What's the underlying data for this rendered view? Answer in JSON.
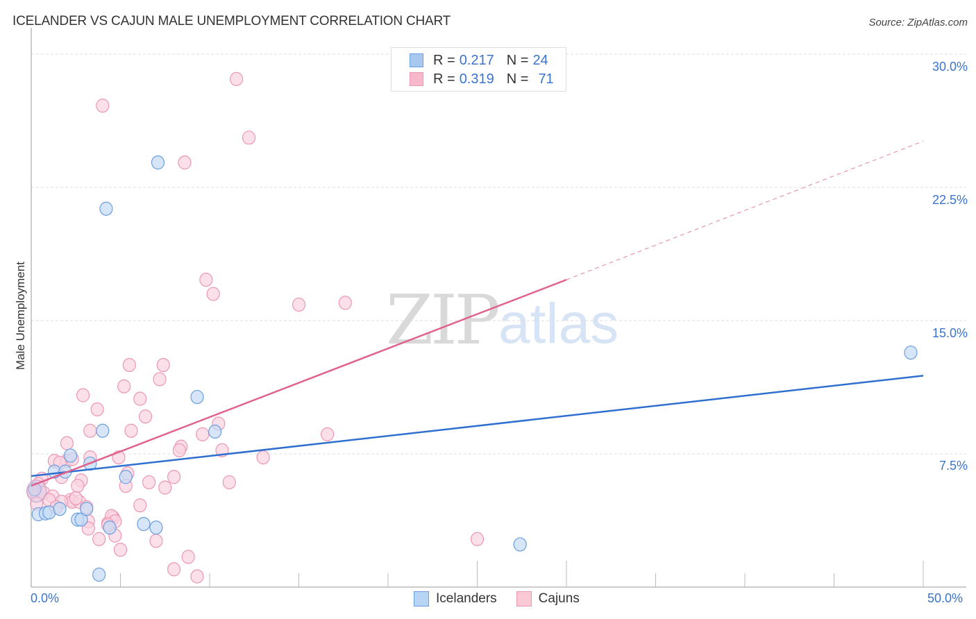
{
  "header": {
    "title": "ICELANDER VS CAJUN MALE UNEMPLOYMENT CORRELATION CHART",
    "source": "Source: ZipAtlas.com"
  },
  "watermark": {
    "zip": "ZIP",
    "atlas": "atlas"
  },
  "axes": {
    "ylabel": "Male Unemployment",
    "yticks": [
      "30.0%",
      "22.5%",
      "15.0%",
      "7.5%"
    ],
    "xticks": [
      "0.0%",
      "50.0%"
    ]
  },
  "legend": {
    "rows": [
      {
        "r_label": "R =",
        "r_value": "0.217",
        "n_label": "N =",
        "n_value": "24",
        "color": "#a8c8f0"
      },
      {
        "r_label": "R =",
        "r_value": "0.319",
        "n_label": "N =",
        "n_value": "71",
        "color": "#f7b8cb"
      }
    ]
  },
  "bottom_legend": {
    "items": [
      {
        "label": "Icelanders",
        "color": "#b8d4f4"
      },
      {
        "label": "Cajuns",
        "color": "#fbc8d6"
      }
    ]
  },
  "colors": {
    "icelanders_fill": "#c5dbf5",
    "icelanders_stroke": "#6a9ee0",
    "icelanders_line": "#2f6fd0",
    "cajuns_fill": "#fbd3df",
    "cajuns_stroke": "#ec97b1",
    "cajuns_line": "#e0628c",
    "tick_text": "#3b74cc",
    "grid": "#dddddd"
  },
  "chart_data": {
    "type": "scatter",
    "title": "ICELANDER VS CAJUN MALE UNEMPLOYMENT CORRELATION CHART",
    "xlabel": "",
    "ylabel": "Male Unemployment",
    "xlim": [
      0,
      50
    ],
    "ylim": [
      0,
      30
    ],
    "x_tick_labels": [
      "0.0%",
      "50.0%"
    ],
    "y_tick_labels": [
      "7.5%",
      "15.0%",
      "22.5%",
      "30.0%"
    ],
    "grid": "horizontal dashed",
    "legend_position": "top-center",
    "series": [
      {
        "name": "Icelanders",
        "R": 0.217,
        "N": 24,
        "points": [
          [
            7.1,
            23.9
          ],
          [
            4.2,
            21.3
          ],
          [
            49.3,
            13.2
          ],
          [
            9.3,
            10.7
          ],
          [
            4.0,
            8.8
          ],
          [
            10.3,
            8.75
          ],
          [
            2.2,
            7.4
          ],
          [
            3.3,
            6.95
          ],
          [
            1.3,
            6.5
          ],
          [
            1.9,
            6.5
          ],
          [
            5.3,
            6.2
          ],
          [
            0.2,
            5.5
          ],
          [
            0.4,
            4.1
          ],
          [
            0.8,
            4.15
          ],
          [
            1.0,
            4.2
          ],
          [
            1.6,
            4.4
          ],
          [
            2.6,
            3.8
          ],
          [
            2.8,
            3.8
          ],
          [
            3.1,
            4.4
          ],
          [
            4.4,
            3.35
          ],
          [
            6.3,
            3.55
          ],
          [
            7.0,
            3.35
          ],
          [
            27.4,
            2.4
          ],
          [
            3.8,
            0.7
          ]
        ],
        "trend": {
          "x0": 0,
          "y0": 6.25,
          "x1": 50,
          "y1": 11.9
        }
      },
      {
        "name": "Cajuns",
        "R": 0.319,
        "N": 71,
        "points": [
          [
            11.5,
            28.6
          ],
          [
            4.0,
            27.1
          ],
          [
            12.2,
            25.3
          ],
          [
            8.6,
            23.9
          ],
          [
            9.8,
            17.3
          ],
          [
            10.2,
            16.5
          ],
          [
            15.0,
            15.9
          ],
          [
            17.6,
            16.0
          ],
          [
            5.5,
            12.5
          ],
          [
            7.4,
            12.5
          ],
          [
            7.2,
            11.7
          ],
          [
            5.2,
            11.3
          ],
          [
            2.9,
            10.8
          ],
          [
            6.1,
            10.6
          ],
          [
            3.7,
            10.0
          ],
          [
            6.4,
            9.6
          ],
          [
            10.5,
            9.2
          ],
          [
            3.3,
            8.8
          ],
          [
            5.6,
            8.8
          ],
          [
            9.6,
            8.6
          ],
          [
            16.6,
            8.6
          ],
          [
            2.0,
            8.1
          ],
          [
            8.4,
            7.9
          ],
          [
            8.3,
            7.7
          ],
          [
            10.7,
            7.7
          ],
          [
            4.9,
            7.3
          ],
          [
            13.0,
            7.3
          ],
          [
            2.0,
            7.1
          ],
          [
            1.3,
            7.1
          ],
          [
            1.6,
            7.0
          ],
          [
            2.3,
            7.2
          ],
          [
            3.3,
            7.3
          ],
          [
            0.6,
            6.1
          ],
          [
            1.7,
            6.2
          ],
          [
            2.8,
            6.0
          ],
          [
            5.4,
            6.4
          ],
          [
            8.0,
            6.2
          ],
          [
            11.1,
            5.9
          ],
          [
            6.6,
            5.9
          ],
          [
            2.6,
            5.7
          ],
          [
            5.3,
            5.7
          ],
          [
            7.5,
            5.6
          ],
          [
            0.4,
            5.8
          ],
          [
            0.7,
            5.3
          ],
          [
            1.2,
            5.1
          ],
          [
            2.2,
            4.9
          ],
          [
            2.3,
            4.8
          ],
          [
            2.7,
            4.8
          ],
          [
            2.5,
            5.0
          ],
          [
            1.7,
            4.8
          ],
          [
            0.3,
            4.7
          ],
          [
            1.0,
            4.9
          ],
          [
            6.1,
            4.6
          ],
          [
            3.1,
            4.5
          ],
          [
            1.4,
            4.5
          ],
          [
            3.2,
            3.7
          ],
          [
            4.3,
            3.6
          ],
          [
            4.6,
            3.9
          ],
          [
            4.5,
            4.0
          ],
          [
            4.7,
            3.7
          ],
          [
            3.2,
            3.3
          ],
          [
            4.3,
            3.5
          ],
          [
            4.7,
            2.9
          ],
          [
            3.8,
            2.7
          ],
          [
            7.0,
            2.6
          ],
          [
            25.0,
            2.7
          ],
          [
            5.0,
            2.1
          ],
          [
            8.8,
            1.7
          ],
          [
            8.0,
            1.0
          ],
          [
            9.3,
            0.6
          ],
          [
            0.1,
            5.4
          ]
        ],
        "trend": {
          "x0": 0,
          "y0": 5.7,
          "x1": 30,
          "y1": 17.3,
          "dashed_to_x": 50,
          "dashed_to_y": 25.1
        }
      }
    ]
  }
}
